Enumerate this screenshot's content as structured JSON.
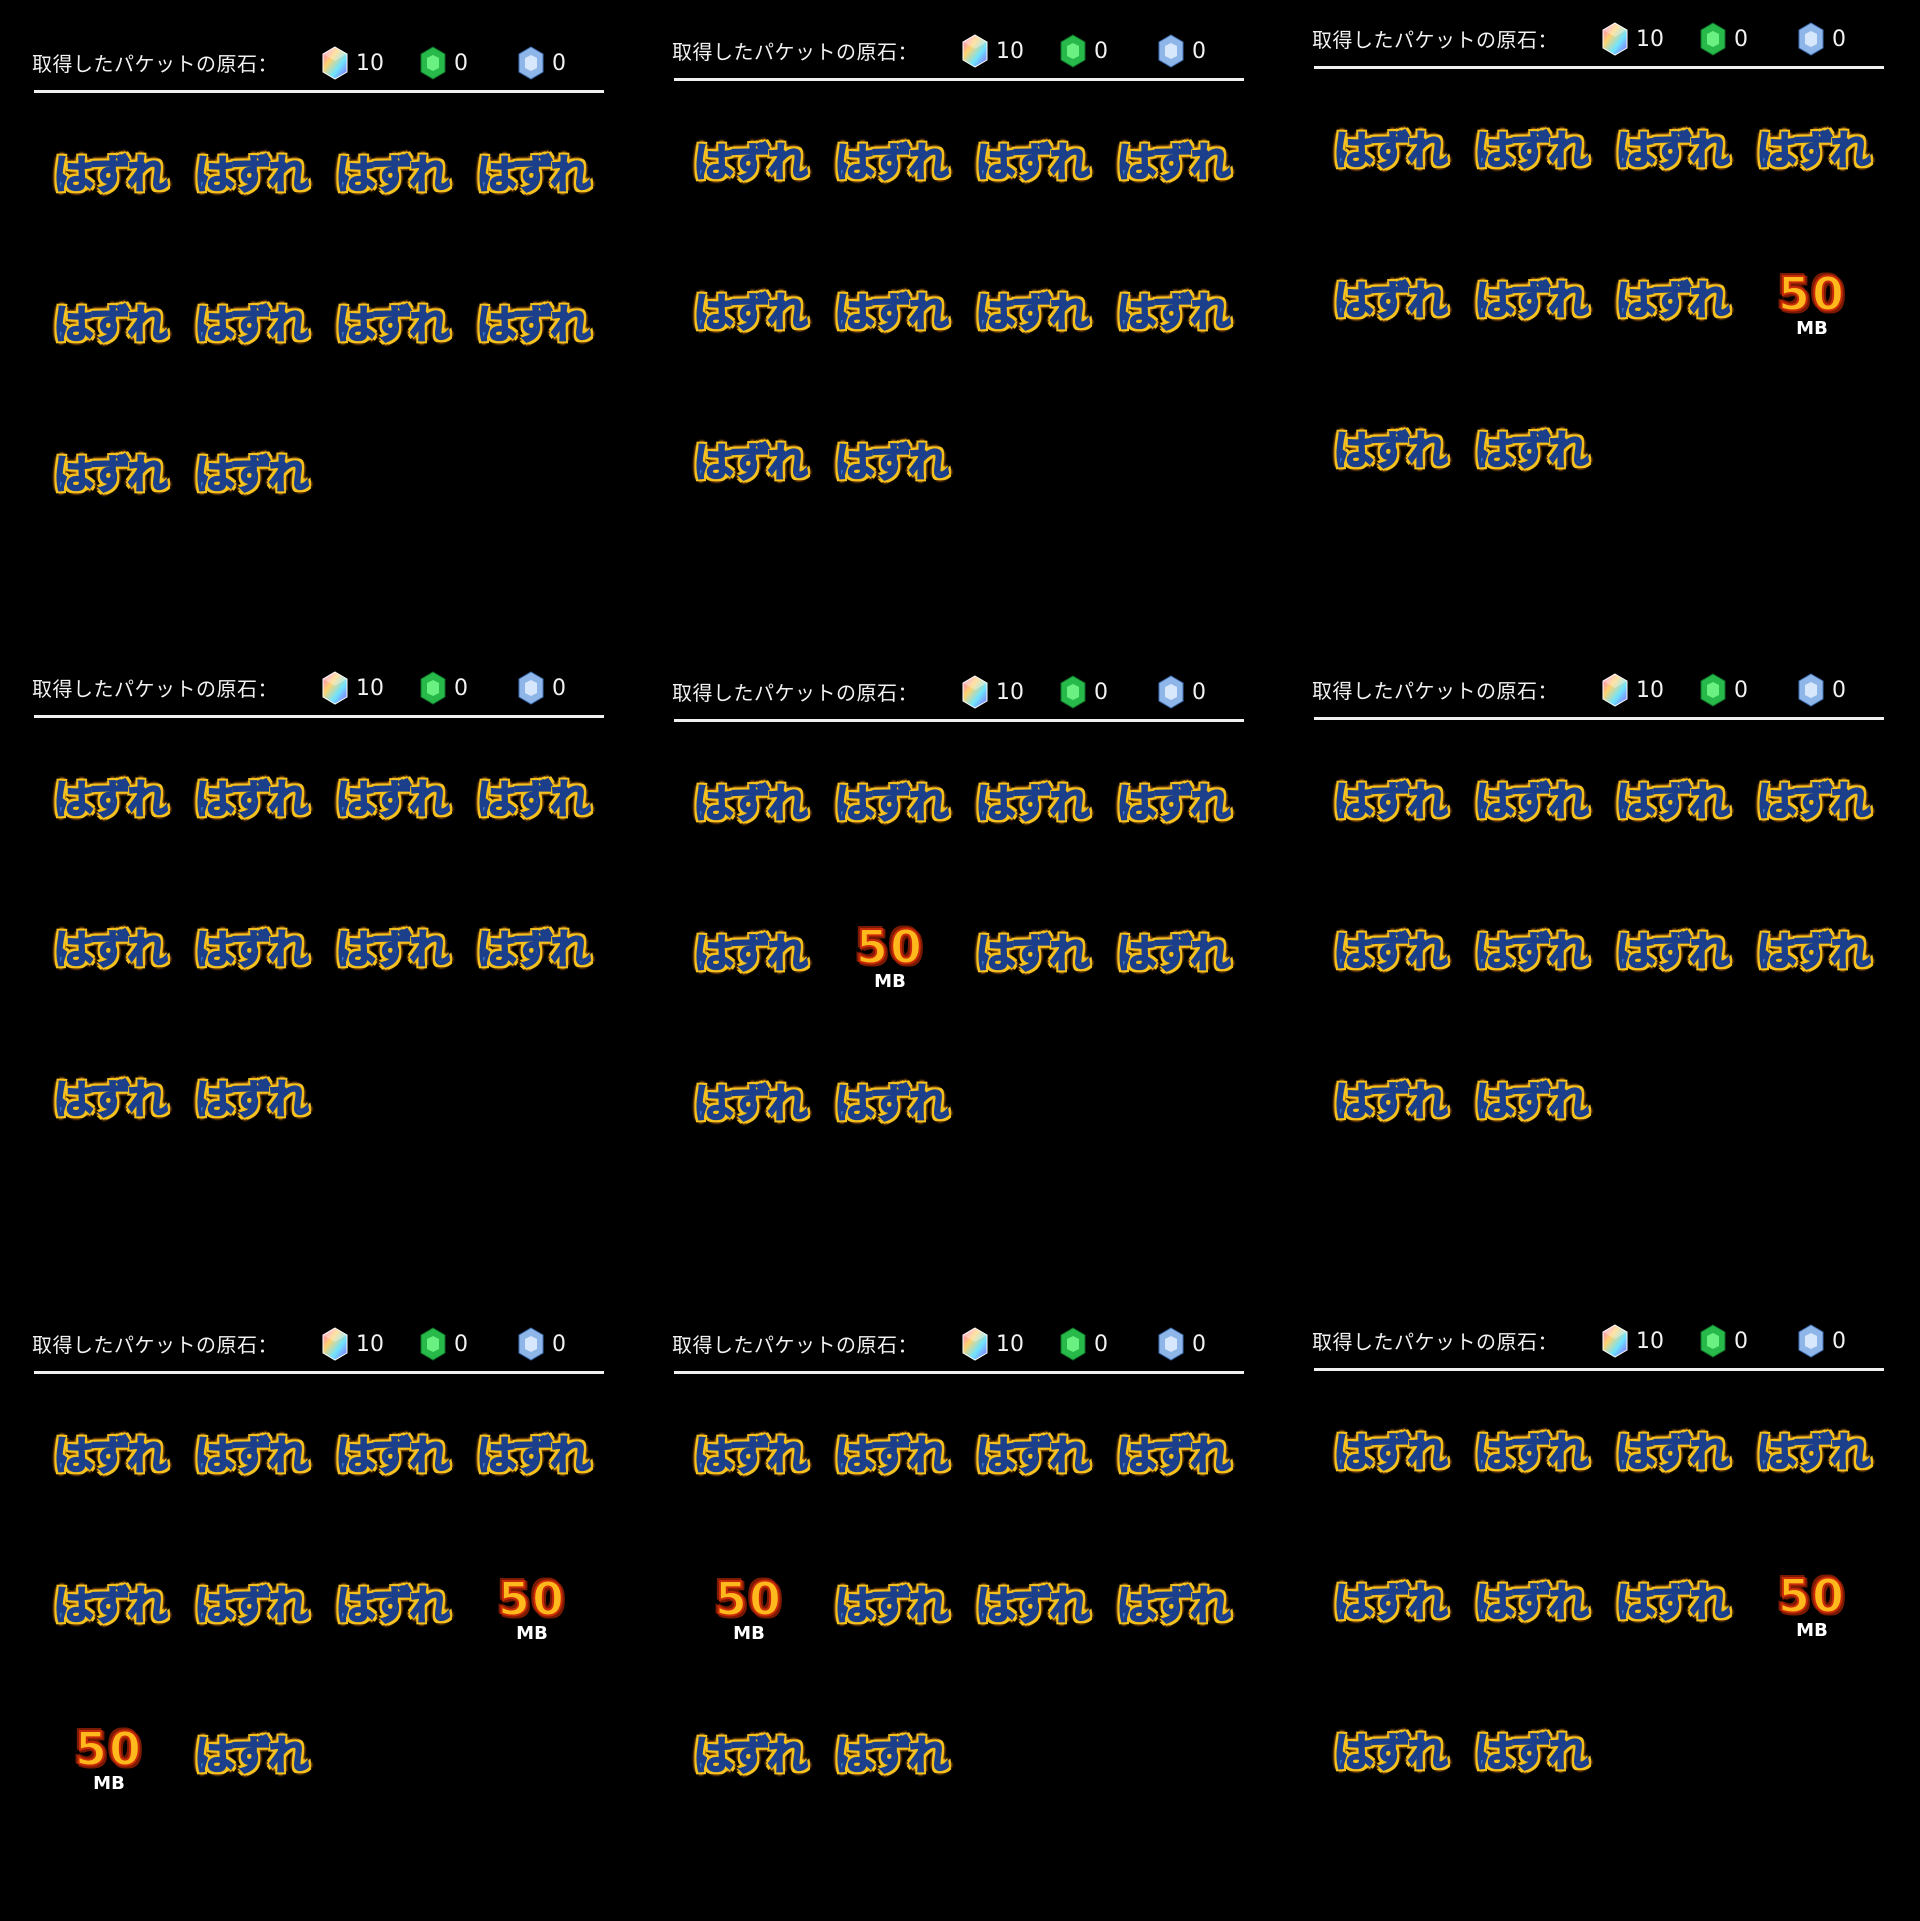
{
  "panels": [
    {
      "header": {
        "title": "取得したパケットの原石：",
        "gems": {
          "rainbow": "10",
          "green": "0",
          "blue": "0"
        }
      },
      "cells": [
        {
          "type": "miss",
          "text": "はずれ"
        },
        {
          "type": "miss",
          "text": "はずれ"
        },
        {
          "type": "miss",
          "text": "はずれ"
        },
        {
          "type": "miss",
          "text": "はずれ"
        },
        {
          "type": "miss",
          "text": "はずれ"
        },
        {
          "type": "miss",
          "text": "はずれ"
        },
        {
          "type": "miss",
          "text": "はずれ"
        },
        {
          "type": "miss",
          "text": "はずれ"
        },
        {
          "type": "miss",
          "text": "はずれ"
        },
        {
          "type": "miss",
          "text": "はずれ"
        }
      ]
    },
    {
      "header": {
        "title": "取得したパケットの原石：",
        "gems": {
          "rainbow": "10",
          "green": "0",
          "blue": "0"
        }
      },
      "cells": [
        {
          "type": "miss",
          "text": "はずれ"
        },
        {
          "type": "miss",
          "text": "はずれ"
        },
        {
          "type": "miss",
          "text": "はずれ"
        },
        {
          "type": "miss",
          "text": "はずれ"
        },
        {
          "type": "miss",
          "text": "はずれ"
        },
        {
          "type": "miss",
          "text": "はずれ"
        },
        {
          "type": "miss",
          "text": "はずれ"
        },
        {
          "type": "miss",
          "text": "はずれ"
        },
        {
          "type": "miss",
          "text": "はずれ"
        },
        {
          "type": "miss",
          "text": "はずれ"
        }
      ]
    },
    {
      "header": {
        "title": "取得したパケットの原石：",
        "gems": {
          "rainbow": "10",
          "green": "0",
          "blue": "0"
        }
      },
      "cells": [
        {
          "type": "miss",
          "text": "はずれ"
        },
        {
          "type": "miss",
          "text": "はずれ"
        },
        {
          "type": "miss",
          "text": "はずれ"
        },
        {
          "type": "miss",
          "text": "はずれ"
        },
        {
          "type": "miss",
          "text": "はずれ"
        },
        {
          "type": "miss",
          "text": "はずれ"
        },
        {
          "type": "miss",
          "text": "はずれ"
        },
        {
          "type": "prize",
          "value": "50",
          "unit": "MB"
        },
        {
          "type": "miss",
          "text": "はずれ"
        },
        {
          "type": "miss",
          "text": "はずれ"
        }
      ]
    },
    {
      "header": {
        "title": "取得したパケットの原石：",
        "gems": {
          "rainbow": "10",
          "green": "0",
          "blue": "0"
        }
      },
      "cells": [
        {
          "type": "miss",
          "text": "はずれ"
        },
        {
          "type": "miss",
          "text": "はずれ"
        },
        {
          "type": "miss",
          "text": "はずれ"
        },
        {
          "type": "miss",
          "text": "はずれ"
        },
        {
          "type": "miss",
          "text": "はずれ"
        },
        {
          "type": "miss",
          "text": "はずれ"
        },
        {
          "type": "miss",
          "text": "はずれ"
        },
        {
          "type": "miss",
          "text": "はずれ"
        },
        {
          "type": "miss",
          "text": "はずれ"
        },
        {
          "type": "miss",
          "text": "はずれ"
        }
      ]
    },
    {
      "header": {
        "title": "取得したパケットの原石：",
        "gems": {
          "rainbow": "10",
          "green": "0",
          "blue": "0"
        }
      },
      "cells": [
        {
          "type": "miss",
          "text": "はずれ"
        },
        {
          "type": "miss",
          "text": "はずれ"
        },
        {
          "type": "miss",
          "text": "はずれ"
        },
        {
          "type": "miss",
          "text": "はずれ"
        },
        {
          "type": "miss",
          "text": "はずれ"
        },
        {
          "type": "prize",
          "value": "50",
          "unit": "MB"
        },
        {
          "type": "miss",
          "text": "はずれ"
        },
        {
          "type": "miss",
          "text": "はずれ"
        },
        {
          "type": "miss",
          "text": "はずれ"
        },
        {
          "type": "miss",
          "text": "はずれ"
        }
      ]
    },
    {
      "header": {
        "title": "取得したパケットの原石：",
        "gems": {
          "rainbow": "10",
          "green": "0",
          "blue": "0"
        }
      },
      "cells": [
        {
          "type": "miss",
          "text": "はずれ"
        },
        {
          "type": "miss",
          "text": "はずれ"
        },
        {
          "type": "miss",
          "text": "はずれ"
        },
        {
          "type": "miss",
          "text": "はずれ"
        },
        {
          "type": "miss",
          "text": "はずれ"
        },
        {
          "type": "miss",
          "text": "はずれ"
        },
        {
          "type": "miss",
          "text": "はずれ"
        },
        {
          "type": "miss",
          "text": "はずれ"
        },
        {
          "type": "miss",
          "text": "はずれ"
        },
        {
          "type": "miss",
          "text": "はずれ"
        }
      ]
    },
    {
      "header": {
        "title": "取得したパケットの原石：",
        "gems": {
          "rainbow": "10",
          "green": "0",
          "blue": "0"
        }
      },
      "cells": [
        {
          "type": "miss",
          "text": "はずれ"
        },
        {
          "type": "miss",
          "text": "はずれ"
        },
        {
          "type": "miss",
          "text": "はずれ"
        },
        {
          "type": "miss",
          "text": "はずれ"
        },
        {
          "type": "miss",
          "text": "はずれ"
        },
        {
          "type": "miss",
          "text": "はずれ"
        },
        {
          "type": "miss",
          "text": "はずれ"
        },
        {
          "type": "prize",
          "value": "50",
          "unit": "MB"
        },
        {
          "type": "prize",
          "value": "50",
          "unit": "MB"
        },
        {
          "type": "miss",
          "text": "はずれ"
        }
      ]
    },
    {
      "header": {
        "title": "取得したパケットの原石：",
        "gems": {
          "rainbow": "10",
          "green": "0",
          "blue": "0"
        }
      },
      "cells": [
        {
          "type": "miss",
          "text": "はずれ"
        },
        {
          "type": "miss",
          "text": "はずれ"
        },
        {
          "type": "miss",
          "text": "はずれ"
        },
        {
          "type": "miss",
          "text": "はずれ"
        },
        {
          "type": "prize",
          "value": "50",
          "unit": "MB"
        },
        {
          "type": "miss",
          "text": "はずれ"
        },
        {
          "type": "miss",
          "text": "はずれ"
        },
        {
          "type": "miss",
          "text": "はずれ"
        },
        {
          "type": "miss",
          "text": "はずれ"
        },
        {
          "type": "miss",
          "text": "はずれ"
        }
      ]
    },
    {
      "header": {
        "title": "取得したパケットの原石：",
        "gems": {
          "rainbow": "10",
          "green": "0",
          "blue": "0"
        }
      },
      "cells": [
        {
          "type": "miss",
          "text": "はずれ"
        },
        {
          "type": "miss",
          "text": "はずれ"
        },
        {
          "type": "miss",
          "text": "はずれ"
        },
        {
          "type": "miss",
          "text": "はずれ"
        },
        {
          "type": "miss",
          "text": "はずれ"
        },
        {
          "type": "miss",
          "text": "はずれ"
        },
        {
          "type": "miss",
          "text": "はずれ"
        },
        {
          "type": "prize",
          "value": "50",
          "unit": "MB"
        },
        {
          "type": "miss",
          "text": "はずれ"
        },
        {
          "type": "miss",
          "text": "はずれ"
        }
      ]
    }
  ],
  "gem_icons": {
    "rainbow": "rainbow-gem-icon",
    "green": "green-gem-icon",
    "blue": "blue-gem-icon"
  },
  "colors": {
    "miss_fill": "#3d7fd4",
    "miss_outline": "#f5c11e",
    "prize_fill": "#ffb91c",
    "prize_outline": "#c92a07",
    "background": "#000000"
  }
}
